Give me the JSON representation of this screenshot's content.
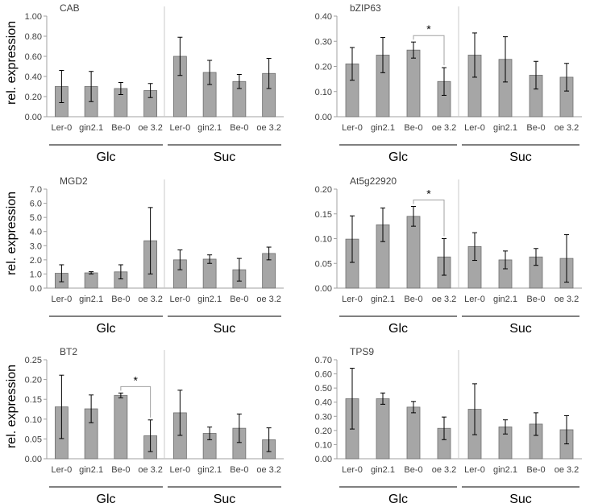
{
  "ylabel": "rel. expression",
  "chart_data": [
    {
      "type": "bar",
      "title": "CAB",
      "categories": [
        "Ler-0",
        "gin2.1",
        "Be-0",
        "oe 3.2",
        "Ler-0",
        "gin2.1",
        "Be-0",
        "oe 3.2"
      ],
      "groups": [
        "Glc",
        "Suc"
      ],
      "values": [
        0.3,
        0.3,
        0.28,
        0.26,
        0.6,
        0.44,
        0.35,
        0.43
      ],
      "errors": [
        0.16,
        0.15,
        0.06,
        0.07,
        0.19,
        0.12,
        0.07,
        0.15
      ],
      "ylim": [
        0,
        1.0
      ],
      "ticks": [
        0,
        0.2,
        0.4,
        0.6,
        0.8,
        1.0
      ],
      "decimals": 2,
      "significance": []
    },
    {
      "type": "bar",
      "title": "bZIP63",
      "categories": [
        "Ler-0",
        "gin2.1",
        "Be-0",
        "oe 3.2",
        "Ler-0",
        "gin2.1",
        "Be-0",
        "oe 3.2"
      ],
      "groups": [
        "Glc",
        "Suc"
      ],
      "values": [
        0.21,
        0.245,
        0.265,
        0.14,
        0.245,
        0.228,
        0.165,
        0.157
      ],
      "errors": [
        0.065,
        0.07,
        0.032,
        0.055,
        0.088,
        0.09,
        0.055,
        0.055
      ],
      "ylim": [
        0,
        0.4
      ],
      "ticks": [
        0,
        0.1,
        0.2,
        0.3,
        0.4
      ],
      "decimals": 2,
      "significance": [
        {
          "from": 2,
          "to": 3,
          "label": "*"
        }
      ]
    },
    {
      "type": "bar",
      "title": "MGD2",
      "categories": [
        "Ler-0",
        "gin2.1",
        "Be-0",
        "oe 3.2",
        "Ler-0",
        "gin2.1",
        "Be-0",
        "oe 3.2"
      ],
      "groups": [
        "Glc",
        "Suc"
      ],
      "values": [
        1.05,
        1.08,
        1.15,
        3.35,
        2.0,
        2.05,
        1.3,
        2.45
      ],
      "errors": [
        0.6,
        0.08,
        0.5,
        2.35,
        0.7,
        0.3,
        0.8,
        0.45
      ],
      "ylim": [
        0,
        7.0
      ],
      "ticks": [
        0,
        1,
        2,
        3,
        4,
        5,
        6,
        7
      ],
      "decimals": 1,
      "significance": []
    },
    {
      "type": "bar",
      "title": "At5g22920",
      "categories": [
        "Ler-0",
        "gin2.1",
        "Be-0",
        "oe 3.2",
        "Ler-0",
        "gin2.1",
        "Be-0",
        "oe 3.2"
      ],
      "groups": [
        "Glc",
        "Suc"
      ],
      "values": [
        0.099,
        0.128,
        0.145,
        0.063,
        0.084,
        0.057,
        0.063,
        0.06
      ],
      "errors": [
        0.047,
        0.034,
        0.02,
        0.037,
        0.028,
        0.018,
        0.017,
        0.048
      ],
      "ylim": [
        0,
        0.2
      ],
      "ticks": [
        0,
        0.05,
        0.1,
        0.15,
        0.2
      ],
      "decimals": 2,
      "significance": [
        {
          "from": 2,
          "to": 3,
          "label": "*"
        }
      ]
    },
    {
      "type": "bar",
      "title": "BT2",
      "categories": [
        "Ler-0",
        "gin2.1",
        "Be-0",
        "oe 3.2",
        "Ler-0",
        "gin2.1",
        "Be-0",
        "oe 3.2"
      ],
      "groups": [
        "Glc",
        "Suc"
      ],
      "values": [
        0.131,
        0.126,
        0.16,
        0.058,
        0.116,
        0.064,
        0.077,
        0.048
      ],
      "errors": [
        0.08,
        0.035,
        0.006,
        0.04,
        0.057,
        0.016,
        0.036,
        0.03
      ],
      "ylim": [
        0,
        0.25
      ],
      "ticks": [
        0,
        0.05,
        0.1,
        0.15,
        0.2,
        0.25
      ],
      "decimals": 2,
      "significance": [
        {
          "from": 2,
          "to": 3,
          "label": "*"
        }
      ]
    },
    {
      "type": "bar",
      "title": "TPS9",
      "categories": [
        "Ler-0",
        "gin2.1",
        "Be-0",
        "oe 3.2",
        "Ler-0",
        "gin2.1",
        "Be-0",
        "oe 3.2"
      ],
      "groups": [
        "Glc",
        "Suc"
      ],
      "values": [
        0.425,
        0.425,
        0.365,
        0.215,
        0.35,
        0.225,
        0.245,
        0.205
      ],
      "errors": [
        0.215,
        0.04,
        0.04,
        0.08,
        0.18,
        0.05,
        0.08,
        0.1
      ],
      "ylim": [
        0,
        0.7
      ],
      "ticks": [
        0,
        0.1,
        0.2,
        0.3,
        0.4,
        0.5,
        0.6,
        0.7
      ],
      "decimals": 2,
      "significance": []
    }
  ]
}
